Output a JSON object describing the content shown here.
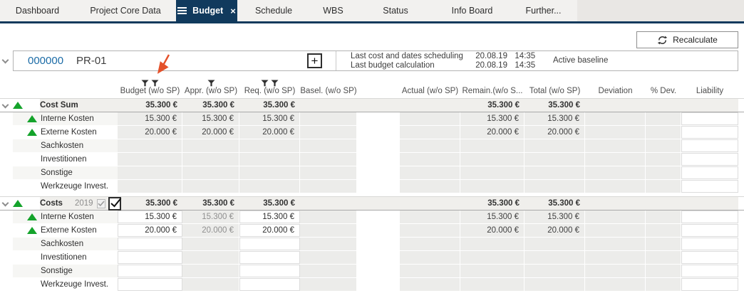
{
  "tabs": {
    "items": [
      {
        "label": "Dashboard",
        "active": false
      },
      {
        "label": "Project Core Data",
        "active": false
      },
      {
        "label": "Budget",
        "active": true
      },
      {
        "label": "Schedule",
        "active": false
      },
      {
        "label": "WBS",
        "active": false
      },
      {
        "label": "Status",
        "active": false
      },
      {
        "label": "Info Board",
        "active": false
      },
      {
        "label": "Further...",
        "active": false
      }
    ],
    "active_close_glyph": "×"
  },
  "toolbar": {
    "recalculate_label": "Recalculate"
  },
  "project": {
    "number": "000000",
    "code": "PR-01",
    "add_label": "+",
    "scheduling_label": "Last cost and dates scheduling",
    "scheduling_date": "20.08.19",
    "scheduling_time": "14:35",
    "calculation_label": "Last budget calculation",
    "calculation_date": "20.08.19",
    "calculation_time": "14:35",
    "baseline_label": "Active baseline"
  },
  "table": {
    "columns": [
      {
        "key": "budget",
        "label": "Budget (w/o SP)",
        "filters": 2
      },
      {
        "key": "appr",
        "label": "Appr. (w/o SP)",
        "filters": 1
      },
      {
        "key": "req",
        "label": "Req. (w/o SP)",
        "filters": 2
      },
      {
        "key": "basel",
        "label": "Basel. (w/o SP)",
        "filters": 0
      },
      {
        "key": "actual",
        "label": "Actual (w/o SP)",
        "filters": 0
      },
      {
        "key": "remain",
        "label": "Remain.(w/o S...",
        "filters": 0
      },
      {
        "key": "total",
        "label": "Total (w/o SP)",
        "filters": 0
      },
      {
        "key": "deviation",
        "label": "Deviation",
        "filters": 0
      },
      {
        "key": "pdev",
        "label": "% Dev.",
        "filters": 0
      },
      {
        "key": "liability",
        "label": "Liability",
        "filters": 0
      }
    ],
    "groups": [
      {
        "name": "Cost Sum",
        "year": null,
        "checkboxes": false,
        "editable_columns": [
          "liability"
        ],
        "muted_columns": [],
        "totals": {
          "budget": "35.300 €",
          "appr": "35.300 €",
          "req": "35.300 €",
          "remain": "35.300 €",
          "total": "35.300 €"
        },
        "rows": [
          {
            "label": "Interne Kosten",
            "trend": true,
            "budget": "15.300 €",
            "appr": "15.300 €",
            "req": "15.300 €",
            "remain": "15.300 €",
            "total": "15.300 €"
          },
          {
            "label": "Externe Kosten",
            "trend": true,
            "budget": "20.000 €",
            "appr": "20.000 €",
            "req": "20.000 €",
            "remain": "20.000 €",
            "total": "20.000 €"
          },
          {
            "label": "Sachkosten",
            "trend": false
          },
          {
            "label": "Investitionen",
            "trend": false
          },
          {
            "label": "Sonstige",
            "trend": false
          },
          {
            "label": "Werkzeuge Invest.",
            "trend": false
          }
        ]
      },
      {
        "name": "Costs",
        "year": "2019",
        "checkboxes": true,
        "editable_columns": [
          "budget",
          "req",
          "liability"
        ],
        "muted_columns": [
          "appr"
        ],
        "totals": {
          "budget": "35.300 €",
          "appr": "35.300 €",
          "req": "35.300 €",
          "remain": "35.300 €",
          "total": "35.300 €"
        },
        "rows": [
          {
            "label": "Interne Kosten",
            "trend": true,
            "budget": "15.300 €",
            "appr": "15.300 €",
            "req": "15.300 €",
            "remain": "15.300 €",
            "total": "15.300 €"
          },
          {
            "label": "Externe Kosten",
            "trend": true,
            "budget": "20.000 €",
            "appr": "20.000 €",
            "req": "20.000 €",
            "remain": "20.000 €",
            "total": "20.000 €"
          },
          {
            "label": "Sachkosten",
            "trend": false
          },
          {
            "label": "Investitionen",
            "trend": false
          },
          {
            "label": "Sonstige",
            "trend": false
          },
          {
            "label": "Werkzeuge Invest.",
            "trend": false
          }
        ]
      }
    ]
  },
  "annotation": {
    "type": "arrow",
    "points_at": "budget-column-filter",
    "color": "#e4512a"
  },
  "colors": {
    "accent_navy": "#113a5d",
    "link_blue": "#1b6ba6",
    "trend_green": "#14a32b",
    "readonly_cell": "#ececea",
    "group_band": "#f0efec",
    "arrow_red": "#e4512a"
  }
}
